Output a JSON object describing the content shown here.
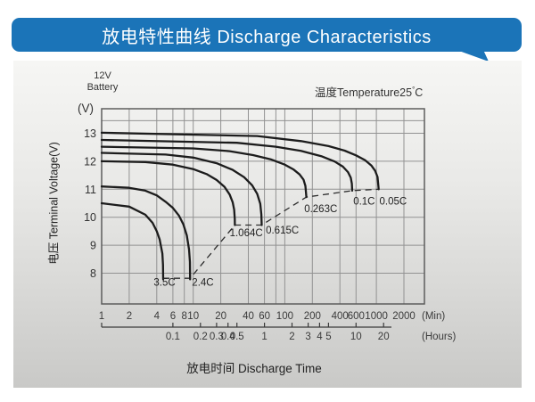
{
  "header": {
    "title": "放电特性曲线 Discharge Characteristics",
    "accent_color": "#1b74b8"
  },
  "panel": {
    "battery_line1": "12V",
    "battery_line2": "Battery",
    "temperature_prefix": "温度Temperature25",
    "temperature_degree": "°",
    "temperature_unit": "C",
    "y_unit": "(V)",
    "y_axis_title": "电压 Terminal Voltage(V)",
    "x_axis_title": "放电时间 Discharge Time"
  },
  "chart_data": {
    "type": "line",
    "title": "放电特性曲线 Discharge Characteristics",
    "xlabel": "放电时间 Discharge Time",
    "ylabel": "电压 Terminal Voltage(V)",
    "x_scale": "log",
    "x_range_min": [
      1,
      3350
    ],
    "y_range": [
      6.9,
      13.88
    ],
    "grid": true,
    "y_ticks": [
      13,
      12,
      11,
      10,
      9,
      8
    ],
    "y_gridlines": [
      8,
      9,
      10,
      11,
      12,
      13,
      13.45
    ],
    "x_gridlines_min": [
      1,
      2,
      4,
      6,
      8,
      10,
      20,
      40,
      60,
      80,
      100,
      200,
      400,
      600,
      1000,
      2000
    ],
    "x_ticks_min": [
      1,
      2,
      4,
      6,
      8,
      10,
      20,
      40,
      60,
      100,
      200,
      400,
      600,
      1000,
      2000
    ],
    "x_unit_primary_label": "(Min)",
    "x_unit_secondary_label": "(Hours)",
    "hour_ticks": [
      {
        "label": "0.1",
        "h": 0.1
      },
      {
        "label": "0.2",
        "h": 0.2
      },
      {
        "label": "0.3",
        "h": 0.3
      },
      {
        "label": "0.4",
        "h": 0.4
      },
      {
        "label": "0.5",
        "h": 0.5
      },
      {
        "label": "1",
        "h": 1
      },
      {
        "label": "2",
        "h": 2
      },
      {
        "label": "3",
        "h": 3
      },
      {
        "label": "4",
        "h": 4
      },
      {
        "label": "5",
        "h": 5
      },
      {
        "label": "10",
        "h": 10
      },
      {
        "label": "20",
        "h": 20
      }
    ],
    "series": [
      {
        "label": "3.5C",
        "points": [
          [
            1,
            10.5
          ],
          [
            2,
            10.38
          ],
          [
            3,
            10.09
          ],
          [
            3.6,
            9.8
          ],
          [
            4,
            9.5
          ],
          [
            4.3,
            9.2
          ],
          [
            4.6,
            8.7
          ],
          [
            4.68,
            8.3
          ],
          [
            4.7,
            7.78
          ]
        ]
      },
      {
        "label": "2.4C",
        "points": [
          [
            1,
            11.1
          ],
          [
            2,
            11.05
          ],
          [
            3,
            10.95
          ],
          [
            4,
            10.78
          ],
          [
            5,
            10.55
          ],
          [
            6,
            10.33
          ],
          [
            7,
            10.05
          ],
          [
            7.8,
            9.75
          ],
          [
            8.5,
            9.35
          ],
          [
            9,
            8.85
          ],
          [
            9.2,
            8.4
          ],
          [
            9.25,
            7.78
          ]
        ]
      },
      {
        "label": "1.064C",
        "points": [
          [
            1,
            12.0
          ],
          [
            3,
            11.97
          ],
          [
            6,
            11.88
          ],
          [
            10,
            11.72
          ],
          [
            14,
            11.54
          ],
          [
            18,
            11.33
          ],
          [
            22,
            11.08
          ],
          [
            25,
            10.81
          ],
          [
            27,
            10.53
          ],
          [
            28,
            10.27
          ],
          [
            28.4,
            9.95
          ],
          [
            28.5,
            9.72
          ]
        ]
      },
      {
        "label": "0.615C",
        "points": [
          [
            1,
            12.3
          ],
          [
            5,
            12.24
          ],
          [
            10,
            12.13
          ],
          [
            18,
            11.93
          ],
          [
            27,
            11.69
          ],
          [
            36,
            11.43
          ],
          [
            44,
            11.14
          ],
          [
            50,
            10.83
          ],
          [
            54,
            10.48
          ],
          [
            55.5,
            10.1
          ],
          [
            56,
            9.72
          ]
        ]
      },
      {
        "label": "0.263C",
        "points": [
          [
            1,
            12.52
          ],
          [
            10,
            12.46
          ],
          [
            25,
            12.36
          ],
          [
            45,
            12.22
          ],
          [
            70,
            12.07
          ],
          [
            100,
            11.88
          ],
          [
            125,
            11.7
          ],
          [
            145,
            11.53
          ],
          [
            160,
            11.34
          ],
          [
            168,
            11.12
          ],
          [
            172,
            10.72
          ]
        ]
      },
      {
        "label": "0.1C",
        "points": [
          [
            1,
            12.76
          ],
          [
            30,
            12.66
          ],
          [
            80,
            12.52
          ],
          [
            150,
            12.37
          ],
          [
            250,
            12.18
          ],
          [
            350,
            11.99
          ],
          [
            430,
            11.81
          ],
          [
            490,
            11.61
          ],
          [
            525,
            11.41
          ],
          [
            540,
            11.2
          ],
          [
            545,
            10.95
          ]
        ]
      },
      {
        "label": "0.05C",
        "points": [
          [
            1,
            13.02
          ],
          [
            50,
            12.9
          ],
          [
            150,
            12.72
          ],
          [
            300,
            12.54
          ],
          [
            450,
            12.38
          ],
          [
            600,
            12.21
          ],
          [
            750,
            12.04
          ],
          [
            880,
            11.85
          ],
          [
            970,
            11.66
          ],
          [
            1030,
            11.44
          ],
          [
            1060,
            11.0
          ]
        ]
      }
    ],
    "dashed_endpoint_line": [
      [
        4.7,
        7.82
      ],
      [
        9.25,
        7.82
      ],
      [
        28.5,
        9.72
      ],
      [
        56,
        9.72
      ],
      [
        172,
        10.72
      ],
      [
        545,
        10.95
      ],
      [
        1060,
        11.0
      ]
    ],
    "curve_labels": [
      {
        "text": "3.5C",
        "min": 3.7,
        "v": 7.55
      },
      {
        "text": "2.4C",
        "min": 9.7,
        "v": 7.55
      },
      {
        "text": "1.064C",
        "min": 25,
        "v": 9.32
      },
      {
        "text": "0.615C",
        "min": 62,
        "v": 9.42
      },
      {
        "text": "0.263C",
        "min": 163,
        "v": 10.18
      },
      {
        "text": "0.1C",
        "min": 560,
        "v": 10.45
      },
      {
        "text": "0.05C",
        "min": 1080,
        "v": 10.45
      }
    ]
  }
}
